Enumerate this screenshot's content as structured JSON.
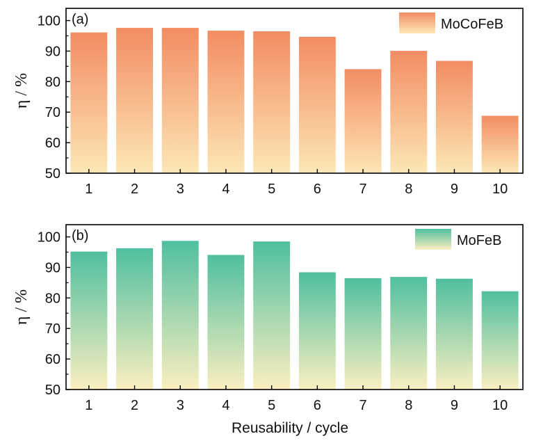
{
  "figure": {
    "xlabel": "Reusability / cycle"
  },
  "chart_data": [
    {
      "type": "bar",
      "panel_label": "(a)",
      "categories": [
        "1",
        "2",
        "3",
        "4",
        "5",
        "6",
        "7",
        "8",
        "9",
        "10"
      ],
      "series": [
        {
          "name": "MoCoFeB",
          "values": [
            96.2,
            97.7,
            97.7,
            96.8,
            96.6,
            94.8,
            84.2,
            90.2,
            86.9,
            68.9
          ]
        }
      ],
      "ylabel": "η / %",
      "xlabel": "",
      "ylim": [
        50,
        104
      ],
      "yticks": [
        50,
        60,
        70,
        80,
        90,
        100
      ],
      "legend": "top-right",
      "grid": false,
      "colors": {
        "top": "#f28c62",
        "bottom": "#fde7b6"
      }
    },
    {
      "type": "bar",
      "panel_label": "(b)",
      "categories": [
        "1",
        "2",
        "3",
        "4",
        "5",
        "6",
        "7",
        "8",
        "9",
        "10"
      ],
      "series": [
        {
          "name": "MoFeB",
          "values": [
            95.3,
            96.4,
            98.8,
            94.2,
            98.6,
            88.5,
            86.6,
            87.0,
            86.4,
            82.3
          ]
        }
      ],
      "ylabel": "η / %",
      "xlabel": "Reusability / cycle",
      "ylim": [
        50,
        104
      ],
      "yticks": [
        50,
        60,
        70,
        80,
        90,
        100
      ],
      "legend": "top-right",
      "grid": false,
      "colors": {
        "top": "#4fbf9f",
        "bottom": "#fbefc0"
      }
    }
  ]
}
